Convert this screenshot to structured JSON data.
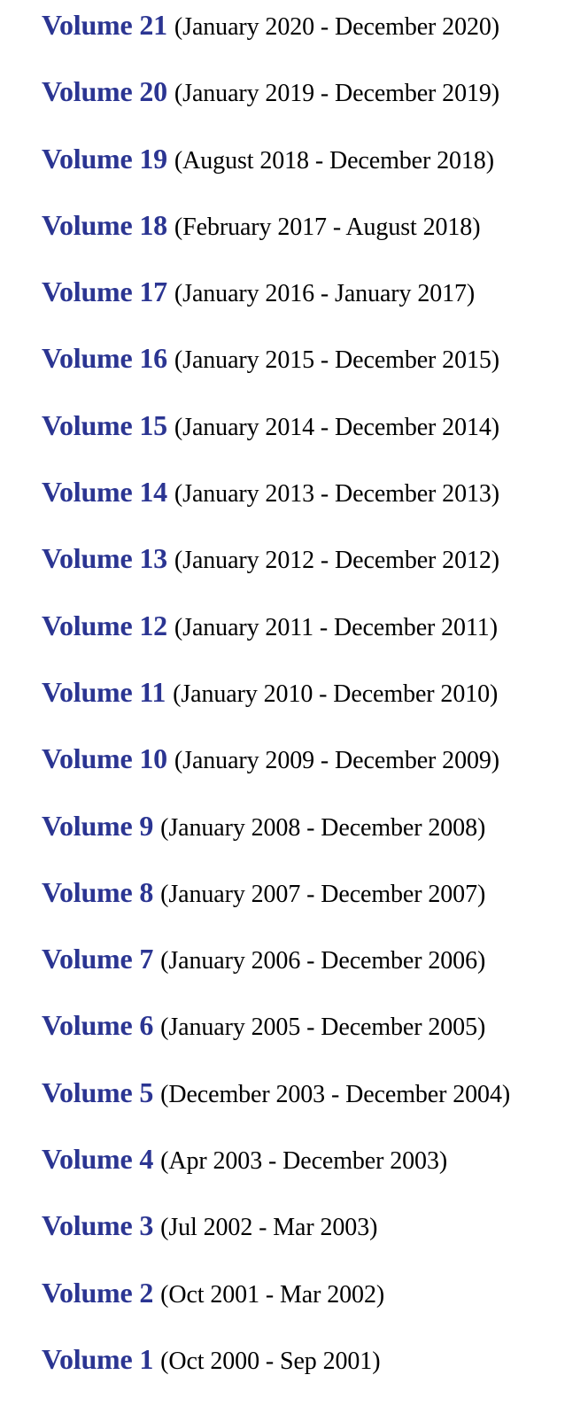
{
  "volumes": [
    {
      "label": "Volume 21",
      "range": "(January 2020 - December 2020)"
    },
    {
      "label": "Volume 20",
      "range": "(January 2019 - December 2019)"
    },
    {
      "label": "Volume 19",
      "range": "(August 2018 - December 2018)"
    },
    {
      "label": "Volume 18",
      "range": "(February 2017 - August 2018)"
    },
    {
      "label": "Volume 17",
      "range": "(January 2016 - January 2017)"
    },
    {
      "label": "Volume 16",
      "range": "(January 2015 - December 2015)"
    },
    {
      "label": "Volume 15",
      "range": "(January 2014 - December 2014)"
    },
    {
      "label": "Volume 14",
      "range": "(January 2013 - December 2013)"
    },
    {
      "label": "Volume 13",
      "range": "(January 2012 - December 2012)"
    },
    {
      "label": "Volume 12",
      "range": "(January 2011 - December 2011)"
    },
    {
      "label": "Volume 11",
      "range": "(January 2010 - December 2010)"
    },
    {
      "label": "Volume 10",
      "range": "(January 2009 - December 2009)"
    },
    {
      "label": "Volume 9",
      "range": "(January 2008 - December 2008)"
    },
    {
      "label": "Volume 8",
      "range": "(January 2007 - December 2007)"
    },
    {
      "label": "Volume 7",
      "range": "(January 2006 - December 2006)"
    },
    {
      "label": "Volume 6",
      "range": "(January 2005 - December 2005)"
    },
    {
      "label": "Volume 5",
      "range": "(December 2003 - December 2004)"
    },
    {
      "label": "Volume 4",
      "range": "(Apr 2003 - December 2003)"
    },
    {
      "label": "Volume 3",
      "range": "(Jul 2002 - Mar 2003)"
    },
    {
      "label": "Volume 2",
      "range": "(Oct 2001 - Mar 2002)"
    },
    {
      "label": "Volume 1",
      "range": "(Oct 2000 - Sep 2001)"
    }
  ],
  "colors": {
    "link": "#2b3592",
    "text": "#000000",
    "background": "#ffffff"
  }
}
